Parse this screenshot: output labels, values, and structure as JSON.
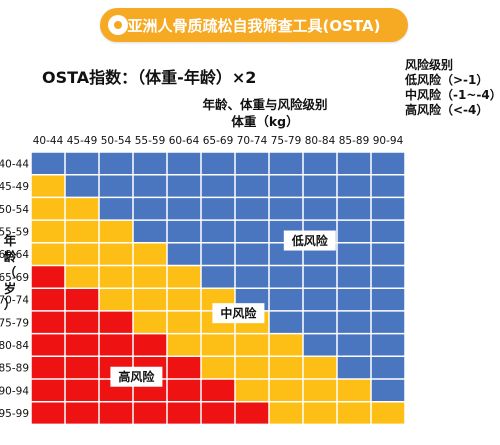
{
  "header": {
    "title": "亚洲人骨质疏松自我筛查工具(OSTA)"
  },
  "formula": "OSTA指数：（体重-年龄）×2",
  "legend": {
    "title": "风险级别",
    "items": [
      "低风险（>-1）",
      "中风险（-1~-4）",
      "高风险（<-4）"
    ]
  },
  "x_title": [
    "年龄、体重与风险级别",
    "体重（kg）"
  ],
  "y_title": "年龄（岁）",
  "colors": {
    "low": "#4a76bf",
    "mid": "#fdbf15",
    "high": "#ee1212",
    "grid": "#ffffff",
    "banner": "#f6a923"
  },
  "chart_data": {
    "type": "heatmap",
    "x_categories": [
      "40-44",
      "45-49",
      "50-54",
      "55-59",
      "60-64",
      "65-69",
      "70-74",
      "75-79",
      "80-84",
      "85-89",
      "90-94"
    ],
    "y_categories": [
      "40-44",
      "45-49",
      "50-54",
      "55-59",
      "60-64",
      "65-69",
      "70-74",
      "75-79",
      "80-84",
      "85-89",
      "90-94",
      "95-99"
    ],
    "zone_labels": {
      "low": "低风险",
      "mid": "中风险",
      "high": "高风险"
    },
    "risk_by_row": [
      [
        "low",
        "low",
        "low",
        "low",
        "low",
        "low",
        "low",
        "low",
        "low",
        "low",
        "low"
      ],
      [
        "mid",
        "low",
        "low",
        "low",
        "low",
        "low",
        "low",
        "low",
        "low",
        "low",
        "low"
      ],
      [
        "mid",
        "mid",
        "low",
        "low",
        "low",
        "low",
        "low",
        "low",
        "low",
        "low",
        "low"
      ],
      [
        "mid",
        "mid",
        "mid",
        "low",
        "low",
        "low",
        "low",
        "low",
        "low",
        "low",
        "low"
      ],
      [
        "mid",
        "mid",
        "mid",
        "mid",
        "low",
        "low",
        "low",
        "low",
        "low",
        "low",
        "low"
      ],
      [
        "high",
        "mid",
        "mid",
        "mid",
        "mid",
        "low",
        "low",
        "low",
        "low",
        "low",
        "low"
      ],
      [
        "high",
        "high",
        "mid",
        "mid",
        "mid",
        "mid",
        "low",
        "low",
        "low",
        "low",
        "low"
      ],
      [
        "high",
        "high",
        "high",
        "mid",
        "mid",
        "mid",
        "mid",
        "low",
        "low",
        "low",
        "low"
      ],
      [
        "high",
        "high",
        "high",
        "high",
        "mid",
        "mid",
        "mid",
        "mid",
        "low",
        "low",
        "low"
      ],
      [
        "high",
        "high",
        "high",
        "high",
        "high",
        "mid",
        "mid",
        "mid",
        "mid",
        "low",
        "low"
      ],
      [
        "high",
        "high",
        "high",
        "high",
        "high",
        "high",
        "mid",
        "mid",
        "mid",
        "mid",
        "low"
      ],
      [
        "high",
        "high",
        "high",
        "high",
        "high",
        "high",
        "high",
        "mid",
        "mid",
        "mid",
        "mid"
      ]
    ]
  }
}
